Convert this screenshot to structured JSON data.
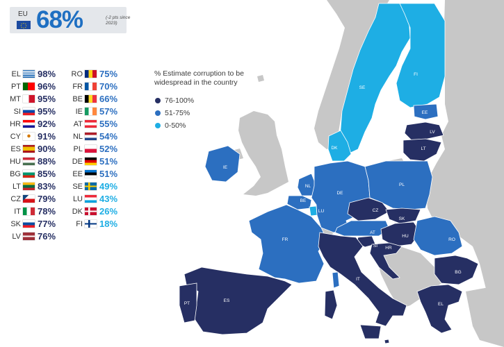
{
  "header": {
    "region_label": "EU",
    "value": "68%",
    "note": "(-2 pts since 2023)"
  },
  "colors": {
    "high": "#262f63",
    "mid": "#2c6fc0",
    "low": "#1eaee4",
    "non_eu": "#c7c7c7",
    "sea": "#ffffff",
    "header_value": "#1e6fc2"
  },
  "legend": {
    "title": "% Estimate corruption to be widespread in the country",
    "items": [
      {
        "label": "76-100%",
        "level": "high"
      },
      {
        "label": "51-75%",
        "level": "mid"
      },
      {
        "label": "0-50%",
        "level": "low"
      }
    ]
  },
  "countries": [
    {
      "code": "EL",
      "value": "98%",
      "level": "high",
      "flag": "el"
    },
    {
      "code": "PT",
      "value": "96%",
      "level": "high",
      "flag": "pt"
    },
    {
      "code": "MT",
      "value": "95%",
      "level": "high",
      "flag": "mt"
    },
    {
      "code": "SI",
      "value": "95%",
      "level": "high",
      "flag": "si"
    },
    {
      "code": "HR",
      "value": "92%",
      "level": "high",
      "flag": "hr"
    },
    {
      "code": "CY",
      "value": "91%",
      "level": "high",
      "flag": "cy"
    },
    {
      "code": "ES",
      "value": "90%",
      "level": "high",
      "flag": "es"
    },
    {
      "code": "HU",
      "value": "88%",
      "level": "high",
      "flag": "hu"
    },
    {
      "code": "BG",
      "value": "85%",
      "level": "high",
      "flag": "bg"
    },
    {
      "code": "LT",
      "value": "83%",
      "level": "high",
      "flag": "lt"
    },
    {
      "code": "CZ",
      "value": "79%",
      "level": "high",
      "flag": "cz"
    },
    {
      "code": "IT",
      "value": "78%",
      "level": "high",
      "flag": "it"
    },
    {
      "code": "SK",
      "value": "77%",
      "level": "high",
      "flag": "sk"
    },
    {
      "code": "LV",
      "value": "76%",
      "level": "high",
      "flag": "lv"
    },
    {
      "code": "RO",
      "value": "75%",
      "level": "mid",
      "flag": "ro"
    },
    {
      "code": "FR",
      "value": "70%",
      "level": "mid",
      "flag": "fr"
    },
    {
      "code": "BE",
      "value": "66%",
      "level": "mid",
      "flag": "be"
    },
    {
      "code": "IE",
      "value": "57%",
      "level": "mid",
      "flag": "ie"
    },
    {
      "code": "AT",
      "value": "55%",
      "level": "mid",
      "flag": "at"
    },
    {
      "code": "NL",
      "value": "54%",
      "level": "mid",
      "flag": "nl"
    },
    {
      "code": "PL",
      "value": "52%",
      "level": "mid",
      "flag": "pl"
    },
    {
      "code": "DE",
      "value": "51%",
      "level": "mid",
      "flag": "de"
    },
    {
      "code": "EE",
      "value": "51%",
      "level": "mid",
      "flag": "ee"
    },
    {
      "code": "SE",
      "value": "49%",
      "level": "low",
      "flag": "se"
    },
    {
      "code": "LU",
      "value": "43%",
      "level": "low",
      "flag": "lu"
    },
    {
      "code": "DK",
      "value": "26%",
      "level": "low",
      "flag": "dk"
    },
    {
      "code": "FI",
      "value": "18%",
      "level": "low",
      "flag": "fi"
    }
  ],
  "map_labels": [
    "SE",
    "FI",
    "EE",
    "LV",
    "LT",
    "DK",
    "IE",
    "NL",
    "BE",
    "LU",
    "DE",
    "PL",
    "CZ",
    "SK",
    "AT",
    "HU",
    "SI",
    "HR",
    "RO",
    "FR",
    "PT",
    "ES",
    "IT",
    "BG",
    "EL"
  ]
}
